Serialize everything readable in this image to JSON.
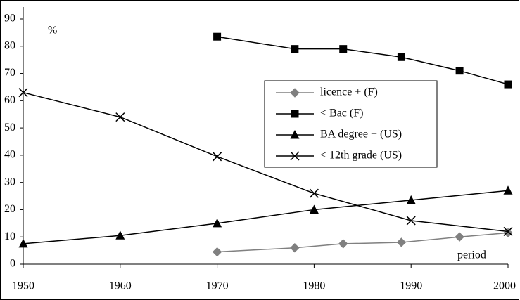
{
  "chart_data": {
    "type": "line",
    "x_annotation": "period",
    "y_annotation": "%",
    "xlim": [
      1950,
      2000
    ],
    "xticks": [
      1950,
      1960,
      1970,
      1980,
      1990,
      2000
    ],
    "ylim": [
      0,
      90
    ],
    "yticks": [
      0,
      10,
      20,
      30,
      40,
      50,
      60,
      70,
      80,
      90
    ],
    "legend": "upper-right",
    "series": [
      {
        "name": "licence + (F)",
        "color": "#808080",
        "marker": "diamond",
        "x": [
          1970,
          1978,
          1983,
          1989,
          1995,
          2000
        ],
        "values": [
          4.5,
          6,
          7.5,
          8,
          10,
          11.5
        ]
      },
      {
        "name": "< Bac (F)",
        "color": "#000000",
        "marker": "square",
        "x": [
          1970,
          1978,
          1983,
          1989,
          1995,
          2000
        ],
        "values": [
          83.5,
          79,
          79,
          76,
          71,
          66
        ]
      },
      {
        "name": "BA degree + (US)",
        "color": "#000000",
        "marker": "triangle",
        "x": [
          1950,
          1960,
          1970,
          1980,
          1990,
          2000
        ],
        "values": [
          7.5,
          10.5,
          15,
          20,
          23.5,
          27
        ]
      },
      {
        "name": "< 12th grade (US)",
        "color": "#000000",
        "marker": "cross",
        "x": [
          1950,
          1960,
          1970,
          1980,
          1990,
          2000
        ],
        "values": [
          63,
          54,
          39.5,
          26,
          16,
          12
        ]
      }
    ]
  }
}
